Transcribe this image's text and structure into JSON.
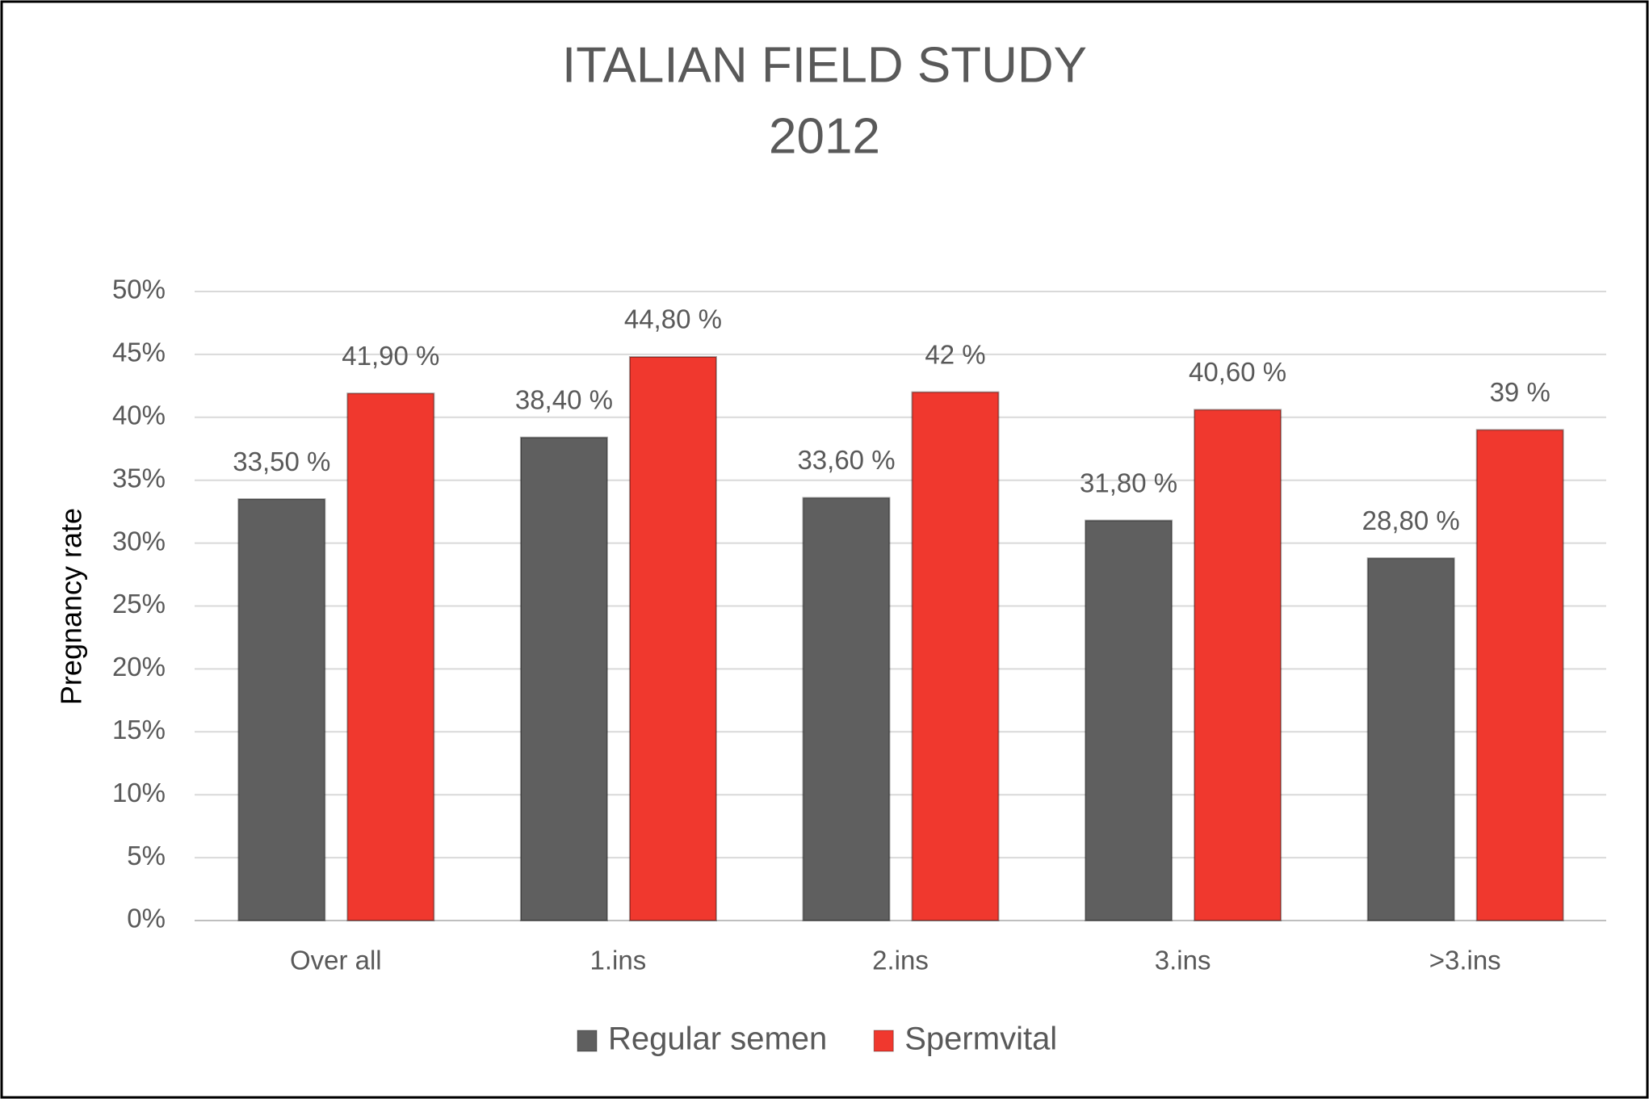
{
  "chart_data": {
    "type": "bar",
    "title": [
      "ITALIAN FIELD STUDY",
      "2012"
    ],
    "y_label": "Pregnancy rate",
    "categories": [
      "Over all",
      "1.ins",
      "2.ins",
      "3.ins",
      ">3.ins"
    ],
    "series": [
      {
        "name": "Regular semen",
        "color": "#5f5f5f",
        "values": [
          33.5,
          38.4,
          33.6,
          31.8,
          28.8
        ],
        "value_labels": [
          "33,50 %",
          "38,40 %",
          "33,60 %",
          "31,80 %",
          "28,80 %"
        ]
      },
      {
        "name": "Spermvital",
        "color": "#f0382e",
        "values": [
          41.9,
          44.8,
          42,
          40.6,
          39
        ],
        "value_labels": [
          "41,90 %",
          "44,80 %",
          "42 %",
          "40,60 %",
          "39 %"
        ]
      }
    ],
    "ylim": [
      0,
      50
    ],
    "yticks": [
      {
        "value": 0,
        "label": "0%"
      },
      {
        "value": 5,
        "label": "5%"
      },
      {
        "value": 10,
        "label": "10%"
      },
      {
        "value": 15,
        "label": "15%"
      },
      {
        "value": 20,
        "label": "20%"
      },
      {
        "value": 25,
        "label": "25%"
      },
      {
        "value": 30,
        "label": "30%"
      },
      {
        "value": 35,
        "label": "35%"
      },
      {
        "value": 40,
        "label": "40%"
      },
      {
        "value": 45,
        "label": "45%"
      },
      {
        "value": 50,
        "label": "50%"
      }
    ],
    "grid": true,
    "legend": "bottom"
  }
}
